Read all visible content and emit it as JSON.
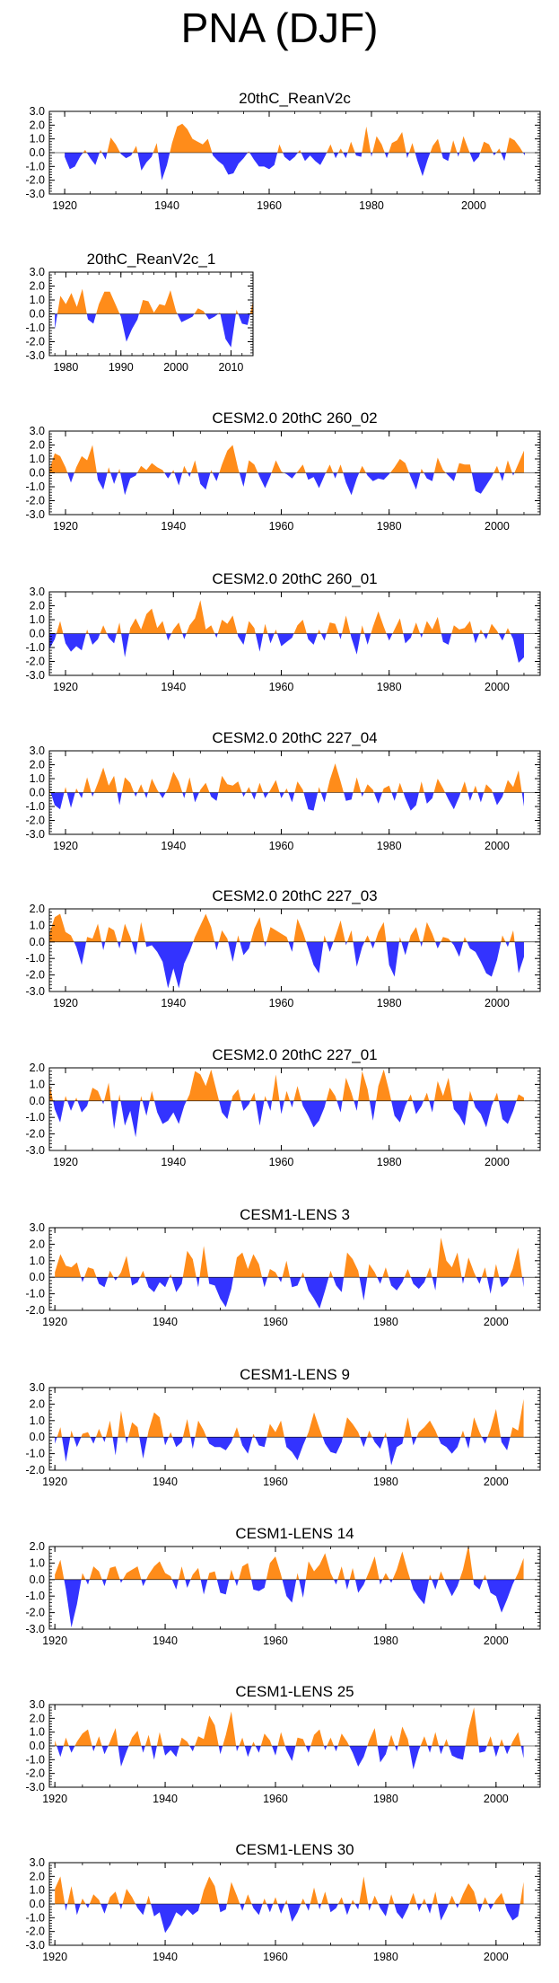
{
  "figure_title": "PNA (DJF)",
  "colors": {
    "positive": "#ff8c1a",
    "negative": "#3333ff",
    "axis": "#000000"
  },
  "chart_data": [
    {
      "type": "area",
      "title": "20thC_ReanV2c",
      "xlim": [
        1917,
        2013
      ],
      "ylim": [
        -3.0,
        3.0
      ],
      "yticks": [
        "3.0",
        "2.0",
        "1.0",
        "0.0",
        "-1.0",
        "-2.0",
        "-3.0"
      ],
      "xticks": [
        "1920",
        "1940",
        "1960",
        "1980",
        "2000"
      ],
      "x_start": 1920,
      "x_end": 2010,
      "values": [
        -0.3,
        -1.2,
        -1.0,
        -0.3,
        0.2,
        -0.4,
        -0.9,
        0.2,
        -0.5,
        1.1,
        0.6,
        -0.1,
        -0.4,
        -0.2,
        0.5,
        -1.3,
        -0.7,
        -0.3,
        0.7,
        -2.0,
        -0.9,
        0.7,
        1.9,
        2.1,
        1.7,
        1.0,
        0.8,
        0.6,
        1.0,
        -0.2,
        -0.6,
        -0.9,
        -1.6,
        -1.5,
        -0.8,
        -0.4,
        0.1,
        -0.5,
        -1.0,
        -1.0,
        -1.2,
        -0.9,
        0.6,
        -0.3,
        -0.6,
        -0.3,
        0.2,
        -0.6,
        -0.2,
        -0.6,
        -0.9,
        -0.2,
        0.6,
        -0.4,
        0.3,
        -0.4,
        0.8,
        -0.2,
        -0.3,
        1.9,
        -0.3,
        1.2,
        0.6,
        -0.4,
        0.7,
        0.9,
        1.5,
        -0.4,
        0.7,
        -0.6,
        -1.7,
        -0.5,
        0.5,
        1.0,
        -0.4,
        -0.6,
        0.9,
        -0.3,
        1.2,
        0.2,
        -0.7,
        -0.3,
        0.8,
        0.6,
        -0.2,
        0.3,
        -0.6,
        1.1,
        0.9,
        0.4,
        -0.2
      ]
    },
    {
      "type": "area",
      "title": "20thC_ReanV2c_1",
      "xlim": [
        1977,
        2014
      ],
      "ylim": [
        -3.0,
        3.0
      ],
      "yticks": [
        "3.0",
        "2.0",
        "1.0",
        "0.0",
        "-1.0",
        "-2.0",
        "-3.0"
      ],
      "xticks": [
        "1980",
        "1990",
        "2000",
        "2010"
      ],
      "x_start": 1978,
      "x_end": 2014,
      "values": [
        -1.1,
        1.3,
        0.7,
        1.5,
        0.5,
        1.8,
        -0.4,
        -0.7,
        0.7,
        1.6,
        1.6,
        0.7,
        -0.2,
        -2.0,
        -1.1,
        -0.4,
        1.0,
        0.9,
        0.1,
        0.7,
        0.6,
        1.7,
        0.2,
        -0.6,
        -0.4,
        -0.2,
        0.4,
        0.2,
        -0.4,
        -0.2,
        0.1,
        -1.8,
        -2.4,
        0.3,
        -0.7,
        -0.8,
        0.9
      ]
    },
    {
      "type": "area",
      "title": "CESM2.0 20thC 260_02",
      "xlim": [
        1917,
        2008
      ],
      "ylim": [
        -3.0,
        3.0
      ],
      "yticks": [
        "3.0",
        "2.0",
        "1.0",
        "0.0",
        "-1.0",
        "-2.0",
        "-3.0"
      ],
      "xticks": [
        "1920",
        "1940",
        "1960",
        "1980",
        "2000"
      ],
      "x_start": 1917,
      "x_end": 2005,
      "values": [
        0.2,
        1.4,
        1.2,
        0.4,
        -0.7,
        0.4,
        1.2,
        0.9,
        2.0,
        -0.5,
        -1.2,
        0.4,
        -0.8,
        0.3,
        -1.6,
        -0.4,
        -0.2,
        0.5,
        0.2,
        0.7,
        0.4,
        0.2,
        -0.4,
        0.2,
        -0.9,
        0.5,
        -0.3,
        0.9,
        -0.8,
        -1.2,
        0.2,
        -0.6,
        0.6,
        1.6,
        2.0,
        0.3,
        -1.0,
        0.9,
        0.6,
        -0.3,
        -1.1,
        -0.2,
        0.9,
        0.1,
        -0.1,
        -0.4,
        0.1,
        0.6,
        -0.5,
        -0.3,
        -1.1,
        -0.2,
        0.6,
        -0.4,
        0.6,
        -0.7,
        -1.6,
        -0.4,
        0.5,
        -0.2,
        -0.6,
        -0.4,
        -0.5,
        -0.1,
        0.4,
        1.0,
        0.7,
        -0.3,
        -1.2,
        0.3,
        -0.4,
        -0.6,
        1.1,
        0.2,
        -0.2,
        -0.6,
        0.7,
        0.6,
        0.6,
        -1.3,
        -1.5,
        -0.9,
        -0.3,
        0.5,
        -0.6,
        0.9,
        -0.2,
        0.7,
        1.6
      ]
    },
    {
      "type": "area",
      "title": "CESM2.0 20thC 260_01",
      "xlim": [
        1917,
        2008
      ],
      "ylim": [
        -3.0,
        3.0
      ],
      "yticks": [
        "3.0",
        "2.0",
        "1.0",
        "0.0",
        "-1.0",
        "-2.0",
        "-3.0"
      ],
      "xticks": [
        "1920",
        "1940",
        "1960",
        "1980",
        "2000"
      ],
      "x_start": 1917,
      "x_end": 2005,
      "values": [
        -1.1,
        -0.4,
        0.9,
        -0.7,
        -1.3,
        -0.9,
        -1.2,
        0.3,
        -0.8,
        -0.4,
        0.6,
        -0.3,
        -0.7,
        0.8,
        -1.7,
        0.4,
        1.1,
        0.3,
        1.4,
        1.8,
        0.4,
        0.9,
        -0.5,
        0.3,
        0.8,
        -0.4,
        0.6,
        1.1,
        2.4,
        0.3,
        0.6,
        -0.3,
        1.0,
        0.7,
        1.3,
        -0.2,
        -0.8,
        0.9,
        0.4,
        -1.3,
        0.7,
        -0.7,
        0.3,
        -0.9,
        -0.6,
        -0.3,
        0.6,
        1.0,
        -0.4,
        -0.8,
        0.3,
        -0.5,
        0.8,
        0.7,
        -0.4,
        1.3,
        -0.3,
        -1.5,
        0.6,
        -0.8,
        0.5,
        1.6,
        0.5,
        -0.5,
        0.3,
        1.1,
        -0.7,
        -0.3,
        0.8,
        -0.3,
        0.9,
        0.3,
        1.2,
        -0.6,
        -0.8,
        0.6,
        0.3,
        0.4,
        0.9,
        -0.7,
        0.3,
        -0.4,
        0.7,
        0.2,
        -0.5,
        0.4,
        -0.4,
        -2.1,
        -1.7
      ]
    },
    {
      "type": "area",
      "title": "CESM2.0 20thC 227_04",
      "xlim": [
        1917,
        2008
      ],
      "ylim": [
        -3.0,
        3.0
      ],
      "yticks": [
        "3.0",
        "2.0",
        "1.0",
        "0.0",
        "-1.0",
        "-2.0",
        "-3.0"
      ],
      "xticks": [
        "1920",
        "1940",
        "1960",
        "1980",
        "2000"
      ],
      "x_start": 1917,
      "x_end": 2005,
      "values": [
        0.3,
        -0.9,
        -1.2,
        0.4,
        -1.1,
        0.3,
        -0.4,
        1.1,
        -0.3,
        0.7,
        1.8,
        0.5,
        1.2,
        -0.9,
        1.1,
        0.7,
        -0.3,
        0.6,
        -0.4,
        1.0,
        0.2,
        -0.4,
        0.3,
        1.5,
        0.8,
        -0.4,
        1.1,
        -0.7,
        0.2,
        0.7,
        -0.3,
        -0.6,
        1.2,
        0.6,
        0.5,
        0.8,
        -0.3,
        0.4,
        -0.5,
        0.7,
        -0.4,
        0.2,
        0.9,
        -0.4,
        0.3,
        -0.7,
        0.8,
        0.2,
        -1.2,
        -1.3,
        0.4,
        -0.7,
        0.9,
        2.1,
        0.8,
        -0.6,
        -0.5,
        1.1,
        -0.3,
        0.6,
        0.2,
        -0.8,
        0.3,
        0.5,
        -0.6,
        0.7,
        -0.4,
        -1.3,
        -0.9,
        0.8,
        -0.8,
        -0.4,
        1.0,
        0.3,
        -0.5,
        -1.2,
        -0.3,
        0.8,
        -0.6,
        0.5,
        -0.7,
        0.6,
        0.2,
        -0.9,
        -0.3,
        0.9,
        0.4,
        1.6,
        -1.0
      ]
    },
    {
      "type": "area",
      "title": "CESM2.0 20thC 227_03",
      "xlim": [
        1917,
        2008
      ],
      "ylim": [
        -3.0,
        2.0
      ],
      "yticks": [
        "2.0",
        "1.0",
        "0.0",
        "-1.0",
        "-2.0",
        "-3.0"
      ],
      "xticks": [
        "1920",
        "1940",
        "1960",
        "1980",
        "2000"
      ],
      "x_start": 1917,
      "x_end": 2005,
      "values": [
        0.5,
        1.5,
        1.7,
        0.6,
        0.4,
        -0.3,
        -1.4,
        0.3,
        0.2,
        1.1,
        -0.5,
        0.9,
        0.7,
        -0.4,
        1.1,
        0.3,
        -0.8,
        1.2,
        -0.3,
        -0.2,
        -0.6,
        -1.2,
        -2.8,
        -1.6,
        -2.8,
        -1.3,
        -0.6,
        0.3,
        1.0,
        1.7,
        0.9,
        -0.5,
        0.7,
        0.2,
        -1.2,
        0.4,
        -0.8,
        -0.4,
        0.8,
        1.5,
        -0.3,
        0.9,
        0.7,
        0.5,
        0.3,
        -0.6,
        1.4,
        0.6,
        -0.4,
        -1.4,
        -1.9,
        0.4,
        -0.6,
        0.3,
        1.3,
        -0.2,
        0.7,
        -1.5,
        -0.3,
        0.4,
        -0.4,
        0.6,
        1.2,
        -1.4,
        -2.1,
        0.3,
        -0.8,
        0.4,
        0.9,
        -0.3,
        1.2,
        0.5,
        -0.4,
        0.3,
        0.2,
        -0.2,
        -0.9,
        0.3,
        -0.4,
        -0.6,
        -1.2,
        -1.9,
        -2.1,
        -1.1,
        0.4,
        -0.3,
        0.7,
        -1.9,
        -0.9
      ]
    },
    {
      "type": "area",
      "title": "CESM2.0 20thC 227_01",
      "xlim": [
        1917,
        2008
      ],
      "ylim": [
        -3.0,
        2.0
      ],
      "yticks": [
        "2.0",
        "1.0",
        "0.0",
        "-1.0",
        "-2.0",
        "-3.0"
      ],
      "xticks": [
        "1920",
        "1940",
        "1960",
        "1980",
        "2000"
      ],
      "x_start": 1917,
      "x_end": 2005,
      "values": [
        1.1,
        -0.5,
        -1.3,
        0.3,
        -0.6,
        0.2,
        -0.7,
        -0.3,
        0.8,
        0.6,
        -0.2,
        1.1,
        -1.7,
        0.4,
        -1.5,
        -0.6,
        -2.2,
        0.3,
        -0.9,
        0.6,
        -0.7,
        -1.4,
        -1.2,
        -0.7,
        -1.4,
        -0.3,
        0.4,
        1.8,
        1.6,
        0.9,
        1.9,
        0.6,
        -0.7,
        -1.1,
        0.3,
        0.7,
        -0.6,
        -0.2,
        0.5,
        -1.5,
        0.3,
        -0.6,
        1.6,
        -0.8,
        0.6,
        -0.4,
        0.9,
        -0.3,
        -0.9,
        -1.6,
        -1.2,
        -0.4,
        0.8,
        0.3,
        -0.7,
        1.4,
        0.5,
        -0.6,
        1.8,
        0.7,
        -1.2,
        0.9,
        1.9,
        0.6,
        -0.9,
        -1.3,
        -0.3,
        0.4,
        -0.8,
        -0.3,
        0.5,
        -0.7,
        1.2,
        0.3,
        1.4,
        -0.5,
        -0.9,
        -1.5,
        0.6,
        -0.4,
        -0.8,
        -1.6,
        -0.3,
        0.5,
        -1.1,
        -1.4,
        -0.6,
        0.4,
        0.2
      ]
    },
    {
      "type": "area",
      "title": "CESM1-LENS 3",
      "xlim": [
        1919,
        2008
      ],
      "ylim": [
        -2.0,
        3.0
      ],
      "yticks": [
        "3.0",
        "2.0",
        "1.0",
        "0.0",
        "-1.0",
        "-2.0"
      ],
      "xticks": [
        "1920",
        "1940",
        "1960",
        "1980",
        "2000"
      ],
      "x_start": 1920,
      "x_end": 2005,
      "values": [
        0.3,
        1.4,
        0.7,
        0.6,
        0.9,
        -0.3,
        0.6,
        0.5,
        -0.4,
        -0.6,
        0.4,
        -0.2,
        0.3,
        1.3,
        -0.5,
        -0.3,
        0.4,
        -0.6,
        -0.9,
        -0.3,
        -0.6,
        0.2,
        -0.9,
        -0.4,
        1.6,
        1.1,
        -0.6,
        1.9,
        -0.4,
        -0.5,
        -1.3,
        -1.8,
        -0.7,
        1.2,
        1.5,
        0.5,
        1.4,
        0.8,
        -0.6,
        0.5,
        0.3,
        -0.3,
        1.0,
        -0.6,
        -0.5,
        0.3,
        -0.8,
        -1.3,
        -1.9,
        -0.8,
        0.4,
        -0.5,
        -0.9,
        1.5,
        1.1,
        0.4,
        -1.4,
        0.8,
        0.3,
        -0.4,
        0.6,
        -0.5,
        -0.8,
        -0.3,
        0.5,
        -0.4,
        -0.7,
        -0.3,
        0.6,
        -0.8,
        2.4,
        1.0,
        0.6,
        1.5,
        -0.4,
        1.2,
        0.3,
        -0.4,
        0.6,
        -1.0,
        0.8,
        -0.6,
        -0.3,
        0.5,
        1.8,
        -0.6
      ]
    },
    {
      "type": "area",
      "title": "CESM1-LENS 9",
      "xlim": [
        1919,
        2008
      ],
      "ylim": [
        -2.0,
        3.0
      ],
      "yticks": [
        "3.0",
        "2.0",
        "1.0",
        "0.0",
        "-1.0",
        "-2.0"
      ],
      "xticks": [
        "1920",
        "1940",
        "1960",
        "1980",
        "2000"
      ],
      "x_start": 1920,
      "x_end": 2005,
      "values": [
        -0.4,
        0.6,
        -1.5,
        0.4,
        -0.6,
        0.2,
        0.3,
        -0.4,
        0.5,
        -0.3,
        1.0,
        -1.1,
        1.6,
        -0.4,
        0.9,
        0.6,
        -1.3,
        0.4,
        1.5,
        1.2,
        -0.5,
        0.3,
        -0.6,
        -0.3,
        1.1,
        -0.7,
        1.0,
        0.4,
        -0.4,
        -0.6,
        -0.6,
        -0.8,
        -0.3,
        0.6,
        -0.5,
        -1.0,
        0.2,
        -0.5,
        -0.6,
        0.8,
        0.3,
        1.0,
        -0.6,
        -0.9,
        -1.4,
        -0.5,
        0.3,
        1.5,
        0.5,
        -0.4,
        -0.9,
        -1.0,
        -0.3,
        1.2,
        0.8,
        0.3,
        -0.6,
        0.4,
        -0.3,
        -0.7,
        0.3,
        -1.7,
        -0.6,
        -0.4,
        1.2,
        -0.5,
        0.3,
        0.6,
        1.0,
        0.4,
        -0.4,
        -0.6,
        -1.0,
        -0.6,
        0.4,
        -0.7,
        1.2,
        0.3,
        -0.4,
        0.5,
        1.7,
        -0.3,
        -0.8,
        0.6,
        0.4,
        2.3
      ]
    },
    {
      "type": "area",
      "title": "CESM1-LENS 14",
      "xlim": [
        1919,
        2008
      ],
      "ylim": [
        -3.0,
        2.0
      ],
      "yticks": [
        "2.0",
        "1.0",
        "0.0",
        "-1.0",
        "-2.0",
        "-3.0"
      ],
      "xticks": [
        "1920",
        "1940",
        "1960",
        "1980",
        "2000"
      ],
      "x_start": 1920,
      "x_end": 2005,
      "values": [
        0.3,
        1.2,
        -0.6,
        -2.9,
        -1.5,
        0.4,
        -0.3,
        0.8,
        0.5,
        -0.4,
        0.7,
        0.8,
        -0.2,
        0.4,
        0.6,
        0.8,
        -0.4,
        0.3,
        0.8,
        1.1,
        0.4,
        0.2,
        -0.6,
        0.8,
        -0.5,
        0.3,
        0.7,
        -0.9,
        0.4,
        0.5,
        -0.8,
        -0.9,
        0.6,
        -0.4,
        0.8,
        1.0,
        -0.6,
        -0.7,
        -0.5,
        1.0,
        1.4,
        0.3,
        -1.0,
        -1.4,
        0.4,
        -1.1,
        1.1,
        0.5,
        0.9,
        1.6,
        0.4,
        -0.3,
        0.8,
        -0.6,
        0.7,
        -0.8,
        -0.3,
        0.5,
        1.4,
        -0.3,
        0.4,
        -0.2,
        0.6,
        1.7,
        0.5,
        -0.6,
        -1.1,
        -1.5,
        0.3,
        -0.6,
        0.5,
        -0.3,
        -1.0,
        -0.4,
        0.6,
        2.1,
        -0.3,
        -0.6,
        0.3,
        -0.8,
        -1.0,
        -2.0,
        -1.2,
        -0.3,
        0.4,
        1.3
      ]
    },
    {
      "type": "area",
      "title": "CESM1-LENS 25",
      "xlim": [
        1919,
        2008
      ],
      "ylim": [
        -3.0,
        3.0
      ],
      "yticks": [
        "3.0",
        "2.0",
        "1.0",
        "0.0",
        "-1.0",
        "-2.0",
        "-3.0"
      ],
      "xticks": [
        "1920",
        "1940",
        "1960",
        "1980",
        "2000"
      ],
      "x_start": 1920,
      "x_end": 2005,
      "values": [
        0.4,
        -0.8,
        0.6,
        -0.5,
        0.3,
        0.9,
        1.2,
        -0.4,
        0.7,
        -0.6,
        0.3,
        1.3,
        -1.5,
        -0.4,
        0.6,
        1.1,
        -0.5,
        0.8,
        -1.0,
        1.0,
        -0.7,
        -0.3,
        -0.8,
        0.6,
        0.3,
        -0.4,
        0.7,
        0.5,
        2.2,
        1.5,
        -0.6,
        0.8,
        2.5,
        -0.4,
        0.6,
        -0.8,
        0.3,
        -0.5,
        0.9,
        0.4,
        -0.7,
        1.0,
        -0.3,
        -1.1,
        0.6,
        0.5,
        -0.5,
        0.8,
        1.2,
        -0.3,
        0.6,
        -0.4,
        0.9,
        0.3,
        -0.5,
        -1.5,
        -0.8,
        0.4,
        1.3,
        -1.2,
        -0.6,
        0.8,
        -0.4,
        1.4,
        0.5,
        -1.7,
        -0.3,
        0.7,
        -0.5,
        1.0,
        -0.6,
        0.5,
        -0.7,
        -0.9,
        -1.0,
        1.2,
        2.8,
        -0.5,
        -0.4,
        0.7,
        -0.8,
        0.5,
        -0.6,
        0.3,
        1.0,
        -0.9
      ]
    },
    {
      "type": "area",
      "title": "CESM1-LENS 30",
      "xlim": [
        1919,
        2008
      ],
      "ylim": [
        -3.0,
        3.0
      ],
      "yticks": [
        "3.0",
        "2.0",
        "1.0",
        "0.0",
        "-1.0",
        "-2.0",
        "-3.0"
      ],
      "xticks": [
        "1920",
        "1940",
        "1960",
        "1980",
        "2000"
      ],
      "x_start": 1920,
      "x_end": 2005,
      "values": [
        1.1,
        2.0,
        -0.5,
        1.3,
        -0.8,
        0.4,
        -0.3,
        0.7,
        0.3,
        -0.7,
        0.5,
        0.9,
        -0.4,
        1.1,
        0.5,
        -0.3,
        -0.8,
        0.6,
        -0.9,
        -0.6,
        -2.1,
        -1.5,
        -0.6,
        -0.9,
        -0.4,
        -0.8,
        -0.5,
        1.0,
        2.0,
        1.3,
        -0.6,
        -0.4,
        1.6,
        0.6,
        -0.5,
        0.7,
        -0.3,
        -0.8,
        0.4,
        -0.6,
        0.5,
        -0.7,
        0.3,
        -1.3,
        -0.6,
        0.4,
        -0.5,
        1.2,
        -0.4,
        0.9,
        -0.6,
        -0.3,
        0.5,
        -0.8,
        0.3,
        -0.4,
        2.0,
        -0.5,
        0.6,
        -0.3,
        -0.9,
        0.7,
        -0.6,
        -1.1,
        -0.3,
        0.8,
        -0.5,
        0.4,
        -0.7,
        0.9,
        -1.2,
        -0.4,
        0.6,
        -0.3,
        0.7,
        1.5,
        0.9,
        -0.6,
        0.5,
        -0.4,
        0.3,
        0.8,
        -0.5,
        -1.2,
        -0.9,
        1.6
      ]
    }
  ]
}
